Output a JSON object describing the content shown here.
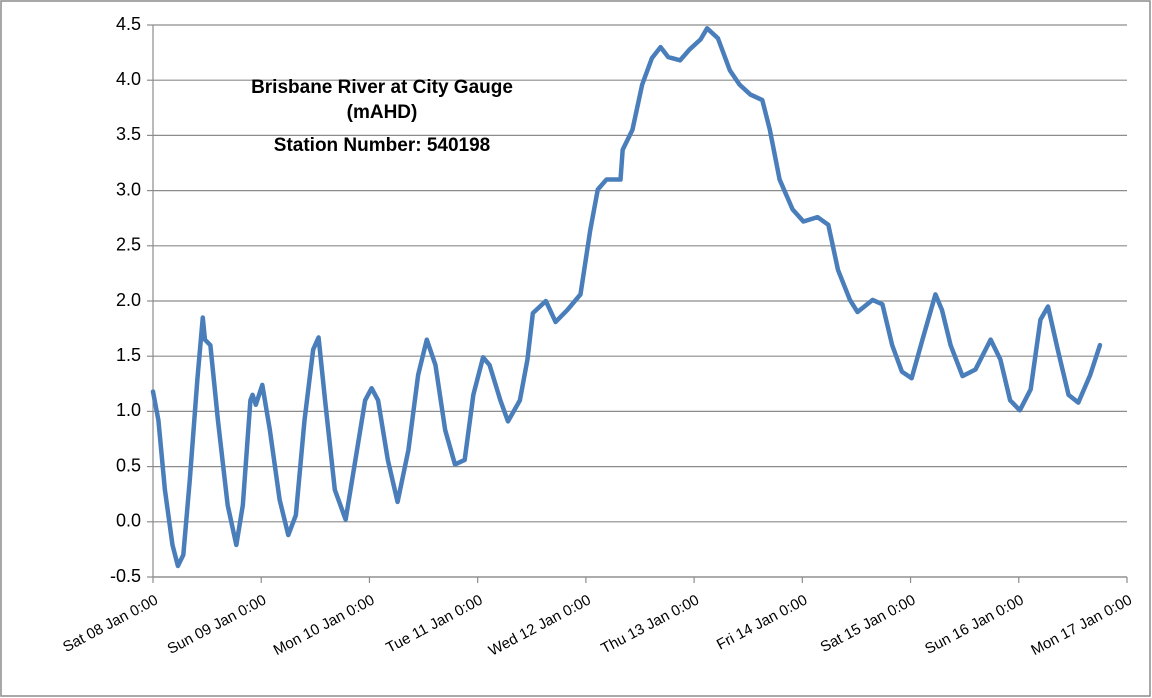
{
  "chart_data": {
    "type": "line",
    "title": [
      "Brisbane River at City Gauge",
      "(mAHD)",
      "Station Number: 540198"
    ],
    "color": "#4a7ebb",
    "grid": true,
    "x": [
      0,
      0.05,
      0.11,
      0.18,
      0.23,
      0.28,
      0.34,
      0.41,
      0.46,
      0.48,
      0.53,
      0.6,
      0.69,
      0.77,
      0.83,
      0.9,
      0.92,
      0.95,
      1.01,
      1.08,
      1.17,
      1.25,
      1.32,
      1.4,
      1.48,
      1.53,
      1.59,
      1.68,
      1.78,
      1.87,
      1.96,
      2.02,
      2.08,
      2.17,
      2.26,
      2.36,
      2.45,
      2.53,
      2.61,
      2.7,
      2.79,
      2.88,
      2.96,
      3.05,
      3.11,
      3.21,
      3.28,
      3.39,
      3.46,
      3.51,
      3.63,
      3.72,
      3.83,
      3.95,
      4.04,
      4.11,
      4.19,
      4.32,
      4.34,
      4.43,
      4.52,
      4.61,
      4.69,
      4.76,
      4.87,
      4.96,
      5.06,
      5.12,
      5.22,
      5.33,
      5.42,
      5.52,
      5.63,
      5.7,
      5.79,
      5.91,
      6.01,
      6.14,
      6.24,
      6.33,
      6.44,
      6.51,
      6.65,
      6.74,
      6.83,
      6.92,
      7.01,
      7.11,
      7.23,
      7.29,
      7.37,
      7.48,
      7.6,
      7.74,
      7.83,
      7.92,
      8.01,
      8.11,
      8.2,
      8.27,
      8.36,
      8.46,
      8.55,
      8.66,
      8.75
    ],
    "values": [
      1.18,
      0.92,
      0.29,
      -0.21,
      -0.4,
      -0.3,
      0.38,
      1.29,
      1.85,
      1.65,
      1.6,
      0.92,
      0.15,
      -0.21,
      0.15,
      1.1,
      1.15,
      1.06,
      1.24,
      0.83,
      0.2,
      -0.12,
      0.06,
      0.92,
      1.56,
      1.67,
      1.1,
      0.29,
      0.02,
      0.56,
      1.1,
      1.21,
      1.1,
      0.56,
      0.18,
      0.65,
      1.33,
      1.65,
      1.42,
      0.83,
      0.52,
      0.56,
      1.15,
      1.49,
      1.42,
      1.1,
      0.91,
      1.1,
      1.47,
      1.89,
      2.0,
      1.81,
      1.92,
      2.06,
      2.64,
      3.01,
      3.1,
      3.1,
      3.37,
      3.55,
      3.96,
      4.2,
      4.3,
      4.21,
      4.18,
      4.28,
      4.37,
      4.47,
      4.38,
      4.09,
      3.96,
      3.87,
      3.82,
      3.55,
      3.1,
      2.83,
      2.72,
      2.76,
      2.69,
      2.28,
      2.01,
      1.9,
      2.01,
      1.97,
      1.6,
      1.36,
      1.3,
      1.65,
      2.06,
      1.92,
      1.6,
      1.32,
      1.38,
      1.65,
      1.47,
      1.1,
      1.01,
      1.2,
      1.83,
      1.95,
      1.56,
      1.15,
      1.08,
      1.33,
      1.6
    ],
    "xlim": [
      0,
      9
    ],
    "xticks": [
      {
        "value": 0,
        "label": "Sat 08 Jan 0:00"
      },
      {
        "value": 1,
        "label": "Sun 09 Jan 0:00"
      },
      {
        "value": 2,
        "label": "Mon 10 Jan 0:00"
      },
      {
        "value": 3,
        "label": "Tue 11 Jan 0:00"
      },
      {
        "value": 4,
        "label": "Wed 12 Jan 0:00"
      },
      {
        "value": 5,
        "label": "Thu 13 Jan 0:00"
      },
      {
        "value": 6,
        "label": "Fri 14 Jan 0:00"
      },
      {
        "value": 7,
        "label": "Sat 15 Jan 0:00"
      },
      {
        "value": 8,
        "label": "Sun 16 Jan 0:00"
      },
      {
        "value": 9,
        "label": "Mon 17 Jan 0:00"
      }
    ],
    "ylim": [
      -0.5,
      4.5
    ],
    "yticks": [
      -0.5,
      {
        "value": 0,
        "label": "0.0"
      },
      0.5,
      {
        "value": 1,
        "label": "1.0"
      },
      1.5,
      {
        "value": 2,
        "label": "2.0"
      },
      2.5,
      {
        "value": 3,
        "label": "3.0"
      },
      3.5,
      {
        "value": 4,
        "label": "4.0"
      },
      4.5
    ]
  }
}
